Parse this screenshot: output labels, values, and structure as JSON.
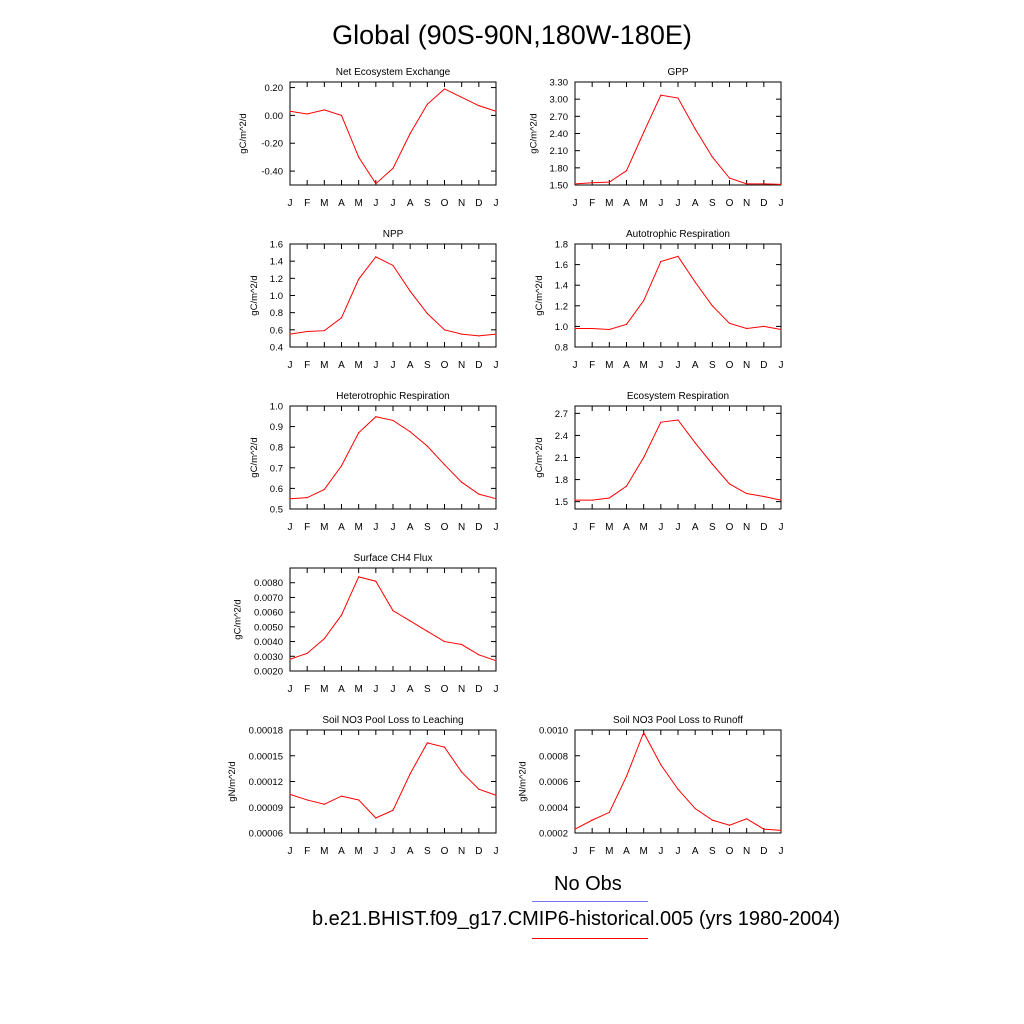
{
  "page_title": "Global (90S-90N,180W-180E)",
  "legend": {
    "obs_label": "No Obs",
    "obs_color": "#7777ee",
    "model_label": "b.e21.BHIST.f09_g17.CMIP6-historical.005 (yrs 1980-2004)",
    "model_color": "#ff0000"
  },
  "series_color": "#ff0000",
  "chart_data": [
    {
      "type": "line",
      "title": "Net Ecosystem Exchange",
      "ylabel": "gC/m^2/d",
      "categories": [
        "J",
        "F",
        "M",
        "A",
        "M",
        "J",
        "J",
        "A",
        "S",
        "O",
        "N",
        "D",
        "J"
      ],
      "values": [
        0.03,
        0.01,
        0.04,
        0.0,
        -0.3,
        -0.49,
        -0.38,
        -0.13,
        0.08,
        0.19,
        0.13,
        0.07,
        0.03
      ],
      "ylim": [
        -0.5,
        0.24
      ],
      "yticks": [
        -0.4,
        -0.2,
        0.0,
        0.2
      ],
      "ytick_labels": [
        "-0.40",
        "-0.20",
        "0.00",
        "0.20"
      ]
    },
    {
      "type": "line",
      "title": "GPP",
      "ylabel": "gC/m^2/d",
      "categories": [
        "J",
        "F",
        "M",
        "A",
        "M",
        "J",
        "J",
        "A",
        "S",
        "O",
        "N",
        "D",
        "J"
      ],
      "values": [
        1.52,
        1.54,
        1.55,
        1.75,
        2.42,
        3.07,
        3.02,
        2.48,
        1.99,
        1.62,
        1.52,
        1.52,
        1.51
      ],
      "ylim": [
        1.5,
        3.3
      ],
      "yticks": [
        1.5,
        1.8,
        2.1,
        2.4,
        2.7,
        3.0,
        3.3
      ],
      "ytick_labels": [
        "1.50",
        "1.80",
        "2.10",
        "2.40",
        "2.70",
        "3.00",
        "3.30"
      ]
    },
    {
      "type": "line",
      "title": "NPP",
      "ylabel": "gC/m^2/d",
      "categories": [
        "J",
        "F",
        "M",
        "A",
        "M",
        "J",
        "J",
        "A",
        "S",
        "O",
        "N",
        "D",
        "J"
      ],
      "values": [
        0.55,
        0.58,
        0.59,
        0.74,
        1.19,
        1.45,
        1.35,
        1.05,
        0.79,
        0.6,
        0.55,
        0.53,
        0.55
      ],
      "ylim": [
        0.4,
        1.6
      ],
      "yticks": [
        0.4,
        0.6,
        0.8,
        1.0,
        1.2,
        1.4,
        1.6
      ],
      "ytick_labels": [
        "0.4",
        "0.6",
        "0.8",
        "1.0",
        "1.2",
        "1.4",
        "1.6"
      ]
    },
    {
      "type": "line",
      "title": "Autotrophic Respiration",
      "ylabel": "gC/m^2/d",
      "categories": [
        "J",
        "F",
        "M",
        "A",
        "M",
        "J",
        "J",
        "A",
        "S",
        "O",
        "N",
        "D",
        "J"
      ],
      "values": [
        0.98,
        0.98,
        0.97,
        1.02,
        1.25,
        1.63,
        1.68,
        1.43,
        1.2,
        1.03,
        0.98,
        1.0,
        0.97
      ],
      "ylim": [
        0.8,
        1.8
      ],
      "yticks": [
        0.8,
        1.0,
        1.2,
        1.4,
        1.6,
        1.8
      ],
      "ytick_labels": [
        "0.8",
        "1.0",
        "1.2",
        "1.4",
        "1.6",
        "1.8"
      ]
    },
    {
      "type": "line",
      "title": "Heterotrophic Respiration",
      "ylabel": "gC/m^2/d",
      "categories": [
        "J",
        "F",
        "M",
        "A",
        "M",
        "J",
        "J",
        "A",
        "S",
        "O",
        "N",
        "D",
        "J"
      ],
      "values": [
        0.55,
        0.555,
        0.595,
        0.71,
        0.87,
        0.948,
        0.93,
        0.875,
        0.805,
        0.715,
        0.63,
        0.572,
        0.55
      ],
      "ylim": [
        0.5,
        1.0
      ],
      "yticks": [
        0.5,
        0.6,
        0.7,
        0.8,
        0.9,
        1.0
      ],
      "ytick_labels": [
        "0.5",
        "0.6",
        "0.7",
        "0.8",
        "0.9",
        "1.0"
      ]
    },
    {
      "type": "line",
      "title": "Ecosystem Respiration",
      "ylabel": "gC/m^2/d",
      "categories": [
        "J",
        "F",
        "M",
        "A",
        "M",
        "J",
        "J",
        "A",
        "S",
        "O",
        "N",
        "D",
        "J"
      ],
      "values": [
        1.52,
        1.52,
        1.55,
        1.71,
        2.1,
        2.58,
        2.61,
        2.3,
        2.01,
        1.74,
        1.61,
        1.57,
        1.52
      ],
      "ylim": [
        1.4,
        2.8
      ],
      "yticks": [
        1.5,
        1.8,
        2.1,
        2.4,
        2.7
      ],
      "ytick_labels": [
        "1.5",
        "1.8",
        "2.1",
        "2.4",
        "2.7"
      ]
    },
    {
      "type": "line",
      "title": "Surface CH4 Flux",
      "ylabel": "gC/m^2/d",
      "categories": [
        "J",
        "F",
        "M",
        "A",
        "M",
        "J",
        "J",
        "A",
        "S",
        "O",
        "N",
        "D",
        "J"
      ],
      "values": [
        0.0028,
        0.0032,
        0.0042,
        0.0058,
        0.0084,
        0.0081,
        0.0061,
        0.0054,
        0.0047,
        0.004,
        0.0038,
        0.0031,
        0.0027
      ],
      "ylim": [
        0.002,
        0.009
      ],
      "yticks": [
        0.002,
        0.003,
        0.004,
        0.005,
        0.006,
        0.007,
        0.008
      ],
      "ytick_labels": [
        "0.0020",
        "0.0030",
        "0.0040",
        "0.0050",
        "0.0060",
        "0.0070",
        "0.0080"
      ]
    },
    {
      "type": "line",
      "title": "Soil NO3 Pool Loss to Leaching",
      "ylabel": "gN/m^2/d",
      "categories": [
        "J",
        "F",
        "M",
        "A",
        "M",
        "J",
        "J",
        "A",
        "S",
        "O",
        "N",
        "D",
        "J"
      ],
      "values": [
        0.000105,
        9.85e-05,
        9.35e-05,
        0.000103,
        9.85e-05,
        7.75e-05,
        8.65e-05,
        0.000129,
        0.000165,
        0.00016,
        0.000131,
        0.000111,
        0.000104
      ],
      "ylim": [
        6e-05,
        0.00018
      ],
      "yticks": [
        6e-05,
        9e-05,
        0.00012,
        0.00015,
        0.00018
      ],
      "ytick_labels": [
        "0.00006",
        "0.00009",
        "0.00012",
        "0.00015",
        "0.00018"
      ]
    },
    {
      "type": "line",
      "title": "Soil NO3 Pool Loss to Runoff",
      "ylabel": "gN/m^2/d",
      "categories": [
        "J",
        "F",
        "M",
        "A",
        "M",
        "J",
        "J",
        "A",
        "S",
        "O",
        "N",
        "D",
        "J"
      ],
      "values": [
        0.00023,
        0.0003,
        0.00036,
        0.00064,
        0.00098,
        0.00073,
        0.00054,
        0.00039,
        0.0003,
        0.00026,
        0.00031,
        0.00023,
        0.00022
      ],
      "ylim": [
        0.0002,
        0.001
      ],
      "yticks": [
        0.0002,
        0.0004,
        0.0006,
        0.0008,
        0.001
      ],
      "ytick_labels": [
        "0.0002",
        "0.0004",
        "0.0006",
        "0.0008",
        "0.0010"
      ]
    }
  ]
}
